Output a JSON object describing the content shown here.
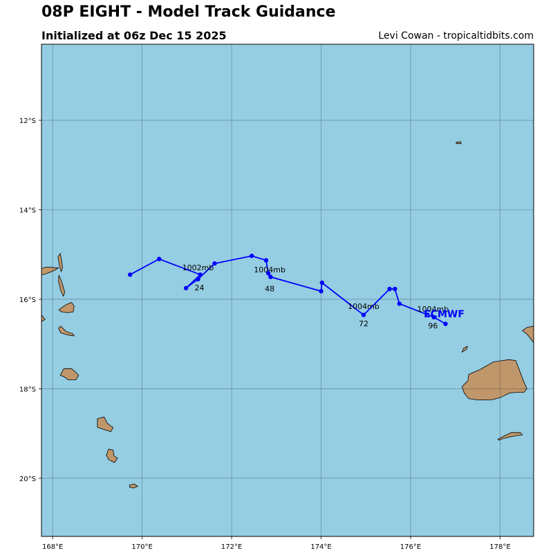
{
  "header": {
    "title": "08P EIGHT - Model Track Guidance",
    "subtitle": "Initialized at 06z Dec 15 2025",
    "credit": "Levi Cowan - tropicaltidbits.com"
  },
  "map": {
    "lon_range": [
      167.75,
      178.75
    ],
    "lat_range": [
      -21.3,
      -10.3
    ],
    "ocean_color": "#95cde2",
    "land_color": "#c0976a",
    "gridline_color": "#2a3d48",
    "lon_ticks": [
      {
        "value": 168,
        "label": "168°E"
      },
      {
        "value": 170,
        "label": "170°E"
      },
      {
        "value": 172,
        "label": "172°E"
      },
      {
        "value": 174,
        "label": "174°E"
      },
      {
        "value": 176,
        "label": "176°E"
      },
      {
        "value": 178,
        "label": "178°E"
      }
    ],
    "lat_ticks": [
      {
        "value": -12,
        "label": "12°S"
      },
      {
        "value": -14,
        "label": "14°S"
      },
      {
        "value": -16,
        "label": "16°S"
      },
      {
        "value": -18,
        "label": "18°S"
      },
      {
        "value": -20,
        "label": "20°S"
      }
    ],
    "islands": [
      {
        "name": "banks-island-1",
        "points": [
          [
            168.13,
            -15.3
          ],
          [
            168.05,
            -15.35
          ],
          [
            167.88,
            -15.42
          ],
          [
            167.75,
            -15.46
          ],
          [
            167.75,
            -15.32
          ],
          [
            167.85,
            -15.28
          ]
        ]
      },
      {
        "name": "espiritu-santo-islet",
        "points": [
          [
            168.17,
            -14.98
          ],
          [
            168.2,
            -15.12
          ],
          [
            168.22,
            -15.3
          ],
          [
            168.19,
            -15.38
          ],
          [
            168.15,
            -15.24
          ],
          [
            168.12,
            -15.05
          ]
        ]
      },
      {
        "name": "maewo-island",
        "points": [
          [
            168.14,
            -15.46
          ],
          [
            168.2,
            -15.6
          ],
          [
            168.27,
            -15.84
          ],
          [
            168.24,
            -15.93
          ],
          [
            168.18,
            -15.8
          ],
          [
            168.13,
            -15.6
          ]
        ]
      },
      {
        "name": "ambrym-island",
        "points": [
          [
            168.2,
            -16.19
          ],
          [
            168.3,
            -16.12
          ],
          [
            168.42,
            -16.07
          ],
          [
            168.48,
            -16.15
          ],
          [
            168.46,
            -16.28
          ],
          [
            168.33,
            -16.3
          ],
          [
            168.2,
            -16.28
          ],
          [
            168.14,
            -16.24
          ]
        ]
      },
      {
        "name": "malakula-fragment",
        "points": [
          [
            167.75,
            -16.35
          ],
          [
            167.83,
            -16.45
          ],
          [
            167.75,
            -16.5
          ]
        ]
      },
      {
        "name": "epi-island",
        "points": [
          [
            168.18,
            -16.6
          ],
          [
            168.3,
            -16.72
          ],
          [
            168.45,
            -16.77
          ],
          [
            168.48,
            -16.82
          ],
          [
            168.35,
            -16.8
          ],
          [
            168.18,
            -16.75
          ],
          [
            168.13,
            -16.65
          ]
        ]
      },
      {
        "name": "efate-island",
        "points": [
          [
            168.25,
            -17.55
          ],
          [
            168.42,
            -17.55
          ],
          [
            168.52,
            -17.63
          ],
          [
            168.58,
            -17.7
          ],
          [
            168.52,
            -17.8
          ],
          [
            168.35,
            -17.8
          ],
          [
            168.25,
            -17.73
          ],
          [
            168.17,
            -17.7
          ]
        ]
      },
      {
        "name": "erromango-island",
        "points": [
          [
            169.0,
            -18.67
          ],
          [
            169.15,
            -18.63
          ],
          [
            169.22,
            -18.77
          ],
          [
            169.35,
            -18.87
          ],
          [
            169.3,
            -18.96
          ],
          [
            169.12,
            -18.9
          ],
          [
            169.0,
            -18.86
          ],
          [
            169.0,
            -18.75
          ]
        ]
      },
      {
        "name": "tanna-island",
        "points": [
          [
            169.25,
            -19.35
          ],
          [
            169.35,
            -19.37
          ],
          [
            169.37,
            -19.5
          ],
          [
            169.45,
            -19.55
          ],
          [
            169.38,
            -19.65
          ],
          [
            169.25,
            -19.58
          ],
          [
            169.2,
            -19.48
          ]
        ]
      },
      {
        "name": "aneityum-island",
        "points": [
          [
            169.72,
            -20.15
          ],
          [
            169.83,
            -20.13
          ],
          [
            169.9,
            -20.18
          ],
          [
            169.8,
            -20.22
          ],
          [
            169.72,
            -20.2
          ]
        ]
      },
      {
        "name": "futuna-islet",
        "points": [
          [
            177.02,
            -12.49
          ],
          [
            177.12,
            -12.48
          ],
          [
            177.13,
            -12.52
          ],
          [
            177.02,
            -12.52
          ]
        ]
      },
      {
        "name": "rotuma-islet",
        "points": [
          [
            177.18,
            -17.1
          ],
          [
            177.27,
            -17.05
          ],
          [
            177.25,
            -17.12
          ],
          [
            177.15,
            -17.18
          ]
        ]
      },
      {
        "name": "viti-levu-island",
        "points": [
          [
            177.3,
            -17.68
          ],
          [
            177.55,
            -17.57
          ],
          [
            177.85,
            -17.4
          ],
          [
            178.05,
            -17.37
          ],
          [
            178.2,
            -17.35
          ],
          [
            178.35,
            -17.37
          ],
          [
            178.42,
            -17.55
          ],
          [
            178.52,
            -17.82
          ],
          [
            178.6,
            -18.0
          ],
          [
            178.53,
            -18.08
          ],
          [
            178.35,
            -18.08
          ],
          [
            178.2,
            -18.1
          ],
          [
            178.0,
            -18.2
          ],
          [
            177.8,
            -18.25
          ],
          [
            177.5,
            -18.25
          ],
          [
            177.3,
            -18.22
          ],
          [
            177.2,
            -18.1
          ],
          [
            177.15,
            -17.95
          ],
          [
            177.28,
            -17.82
          ]
        ]
      },
      {
        "name": "vanua-levu-fragment",
        "points": [
          [
            178.75,
            -16.6
          ],
          [
            178.6,
            -16.63
          ],
          [
            178.5,
            -16.7
          ],
          [
            178.62,
            -16.8
          ],
          [
            178.75,
            -16.97
          ]
        ]
      },
      {
        "name": "kadavu-island",
        "points": [
          [
            177.95,
            -19.13
          ],
          [
            178.1,
            -19.05
          ],
          [
            178.25,
            -18.98
          ],
          [
            178.45,
            -18.98
          ],
          [
            178.5,
            -19.03
          ],
          [
            178.35,
            -19.05
          ],
          [
            178.2,
            -19.08
          ],
          [
            178.05,
            -19.12
          ],
          [
            177.98,
            -19.15
          ]
        ]
      }
    ]
  },
  "track": {
    "model": "ECMWF",
    "color": "#0000ff",
    "points": [
      [
        169.73,
        -15.45
      ],
      [
        170.38,
        -15.1
      ],
      [
        171.3,
        -15.45
      ],
      [
        170.98,
        -15.75
      ],
      [
        171.25,
        -15.55
      ],
      [
        171.62,
        -15.2
      ],
      [
        172.45,
        -15.03
      ],
      [
        172.77,
        -15.13
      ],
      [
        172.82,
        -15.42
      ],
      [
        172.87,
        -15.5
      ],
      [
        174.0,
        -15.82
      ],
      [
        174.02,
        -15.63
      ],
      [
        174.95,
        -16.35
      ],
      [
        175.53,
        -15.77
      ],
      [
        175.65,
        -15.77
      ],
      [
        175.75,
        -16.1
      ],
      [
        176.52,
        -16.4
      ],
      [
        176.78,
        -16.55
      ]
    ],
    "labels": [
      {
        "text": "1002mb",
        "lon": 171.25,
        "lat": -15.35
      },
      {
        "text": "24",
        "lon": 171.28,
        "lat": -15.8
      },
      {
        "text": "1004mb",
        "lon": 172.85,
        "lat": -15.4
      },
      {
        "text": "48",
        "lon": 172.85,
        "lat": -15.82
      },
      {
        "text": "1004mb",
        "lon": 174.95,
        "lat": -16.22
      },
      {
        "text": "72",
        "lon": 174.95,
        "lat": -16.6
      },
      {
        "text": "1004mb",
        "lon": 176.5,
        "lat": -16.28
      },
      {
        "text": "96",
        "lon": 176.5,
        "lat": -16.65
      }
    ],
    "model_label": {
      "lon": 176.75,
      "lat": -16.4
    }
  }
}
